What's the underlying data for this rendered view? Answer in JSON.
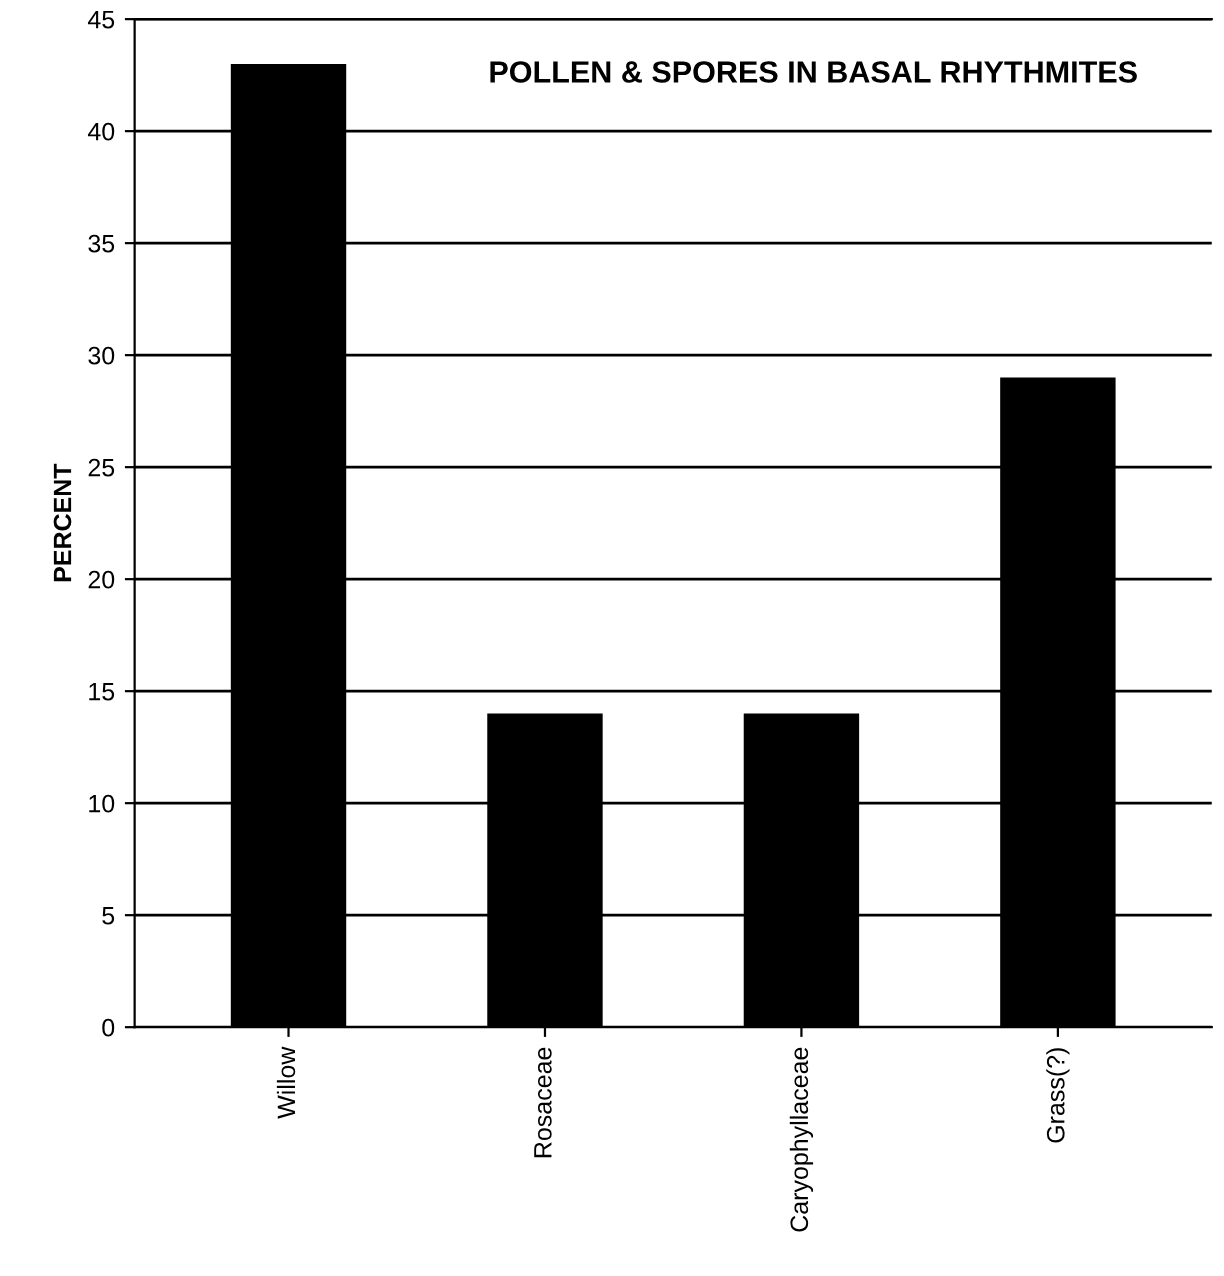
{
  "chart_data": {
    "type": "bar",
    "title": "POLLEN & SPORES IN BASAL RHYTHMITES",
    "ylabel": "PERCENT",
    "categories": [
      "Willow",
      "Rosaceae",
      "Caryophyllaceae",
      "Grass(?)"
    ],
    "values": [
      43,
      14,
      14,
      29
    ],
    "color": "#000000",
    "ylim": [
      0,
      45
    ],
    "yticks": [
      0,
      5,
      10,
      15,
      20,
      25,
      30,
      35,
      40,
      45
    ],
    "grid": "y",
    "legend": false
  }
}
